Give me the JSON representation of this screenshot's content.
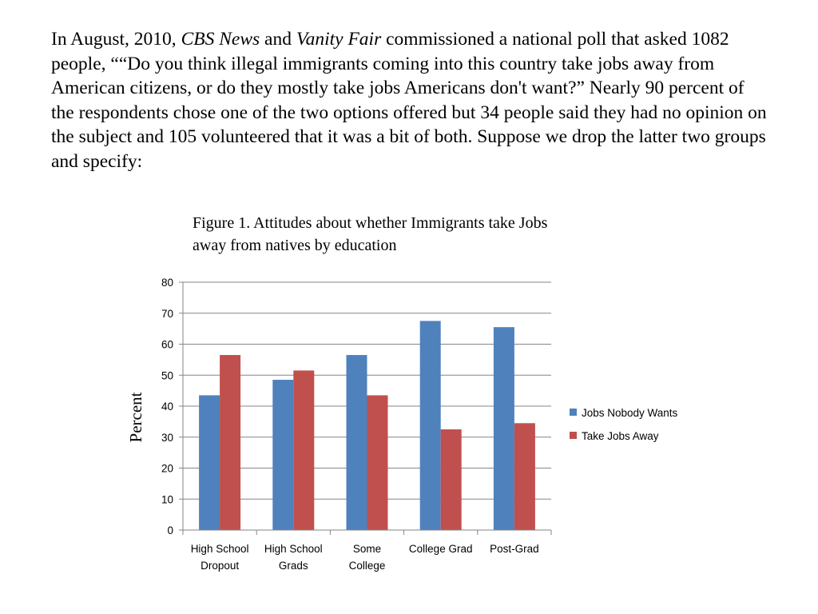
{
  "paragraph": {
    "p1": "In August, 2010, ",
    "cbs": "CBS News",
    "p2": " and ",
    "vf": "Vanity Fair",
    "p3": " commissioned a national poll that asked 1082 people, ““Do you think illegal immigrants coming into this country take jobs away from American citizens, or do they mostly take jobs Americans don't want?”    Nearly 90 percent of the respondents chose one of the two options offered but 34 people said they had no opinion on the subject and 105 volunteered that it was a bit of both.  Suppose we drop the latter two groups and specify:"
  },
  "figure_caption": "Figure 1.  Attitudes about whether Immigrants take Jobs away from natives by education",
  "chart_data": {
    "type": "bar",
    "title": "",
    "xlabel": "",
    "ylabel": "Percent",
    "ylim": [
      0,
      80
    ],
    "yticks": [
      0,
      10,
      20,
      30,
      40,
      50,
      60,
      70,
      80
    ],
    "grid": true,
    "legend_position": "right",
    "categories": [
      [
        "High School",
        "Dropout"
      ],
      [
        "High School",
        "Grads"
      ],
      [
        "Some",
        "College"
      ],
      [
        "College Grad"
      ],
      [
        "Post-Grad"
      ]
    ],
    "series": [
      {
        "name": "Jobs Nobody Wants",
        "color": "#4f81bd",
        "values": [
          43.5,
          48.5,
          56.5,
          67.5,
          65.5
        ]
      },
      {
        "name": "Take Jobs Away",
        "color": "#c0504d",
        "values": [
          56.5,
          51.5,
          43.5,
          32.5,
          34.5
        ]
      }
    ]
  }
}
